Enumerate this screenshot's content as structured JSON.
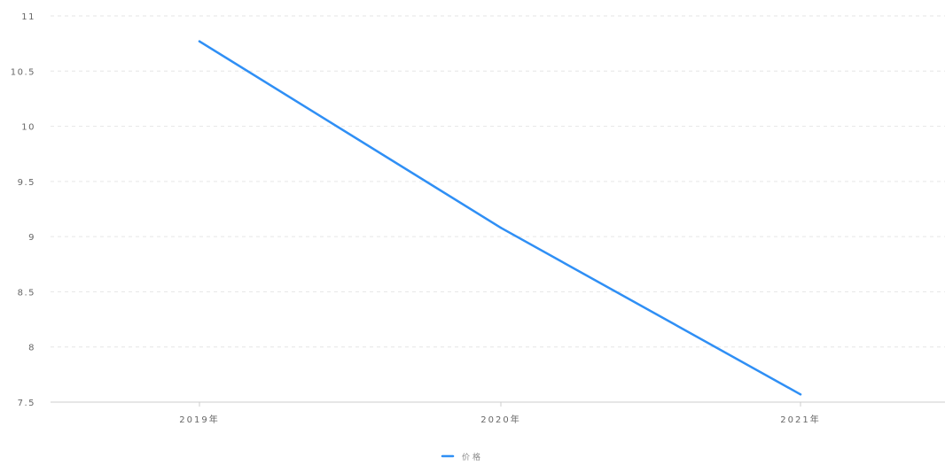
{
  "chart_data": {
    "type": "line",
    "categories": [
      "2019年",
      "2020年",
      "2021年"
    ],
    "series": [
      {
        "name": "价格",
        "values": [
          10.77,
          9.08,
          7.57
        ],
        "color": "#2f8ff5"
      }
    ],
    "ylim": [
      7.5,
      11
    ],
    "y_ticks": [
      7.5,
      8,
      8.5,
      9,
      9.5,
      10,
      10.5,
      11
    ],
    "y_tick_labels": [
      "7.5",
      "8",
      "8.5",
      "9",
      "9.5",
      "10",
      "10.5",
      "11"
    ],
    "grid": true,
    "legend": "bottom-center",
    "colors": {
      "grid": "#e6e6e6",
      "axis": "#cccccc",
      "text": "#666666"
    }
  }
}
